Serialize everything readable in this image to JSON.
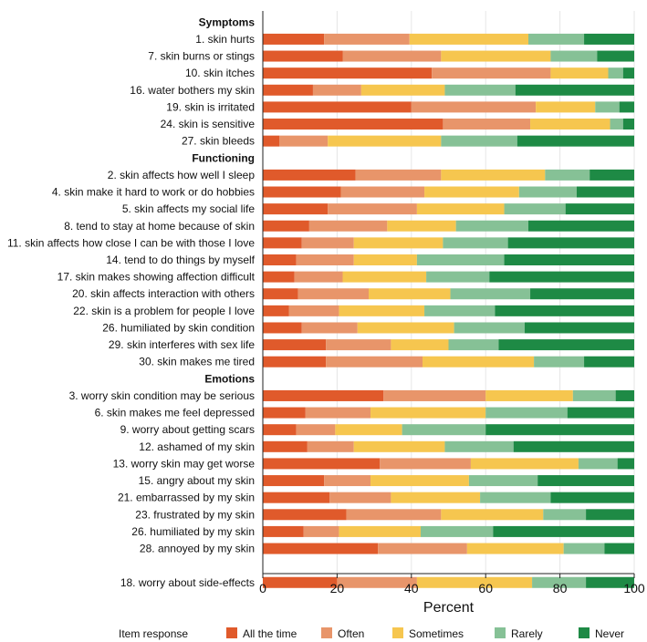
{
  "chart_data": {
    "type": "bar",
    "orientation": "horizontal",
    "stacked": true,
    "xlabel": "Percent",
    "xlim": [
      0,
      100
    ],
    "xticks": [
      "0",
      "20",
      "40",
      "60",
      "80",
      "100"
    ],
    "grid": true,
    "legend_title": "Item response",
    "legend_position": "bottom",
    "series": [
      {
        "name": "All the time",
        "color": "#e05a2b"
      },
      {
        "name": "Often",
        "color": "#e8956a"
      },
      {
        "name": "Sometimes",
        "color": "#f6c64f"
      },
      {
        "name": "Rarely",
        "color": "#86c196"
      },
      {
        "name": "Never",
        "color": "#1e8a45"
      }
    ],
    "rows": [
      {
        "kind": "header",
        "label": "Symptoms"
      },
      {
        "kind": "bar",
        "label": "1. skin hurts",
        "values": [
          16.5,
          23,
          32,
          15,
          13.5
        ]
      },
      {
        "kind": "bar",
        "label": "7. skin burns or stings",
        "values": [
          21.5,
          26.5,
          29.5,
          12.5,
          10
        ]
      },
      {
        "kind": "bar",
        "label": "10. skin itches",
        "values": [
          45.5,
          32,
          15.5,
          4,
          3
        ]
      },
      {
        "kind": "bar",
        "label": "16. water bothers my skin",
        "values": [
          13.5,
          13,
          22.5,
          19,
          32
        ]
      },
      {
        "kind": "bar",
        "label": "19. skin is irritated",
        "values": [
          40,
          33.5,
          16,
          6.5,
          4
        ]
      },
      {
        "kind": "bar",
        "label": "24. skin is sensitive",
        "values": [
          48.5,
          23.5,
          21.5,
          3.5,
          3
        ]
      },
      {
        "kind": "bar",
        "label": "27. skin bleeds",
        "values": [
          4.5,
          13,
          30.5,
          20.5,
          31.5
        ]
      },
      {
        "kind": "header",
        "label": "Functioning"
      },
      {
        "kind": "bar",
        "label": "2. skin affects how well I sleep",
        "values": [
          25,
          23,
          28,
          12,
          12
        ]
      },
      {
        "kind": "bar",
        "label": "4. skin make it hard to work or do hobbies",
        "values": [
          21,
          22.5,
          25.5,
          15.5,
          15.5
        ]
      },
      {
        "kind": "bar",
        "label": "5. skin affects my social life",
        "values": [
          17.5,
          24,
          23.5,
          16.5,
          18.5
        ]
      },
      {
        "kind": "bar",
        "label": "8. tend to stay at home because of skin",
        "values": [
          12.5,
          21,
          18.5,
          19.5,
          28.5
        ]
      },
      {
        "kind": "bar",
        "label": "11. skin affects how close I can be with those I love",
        "values": [
          10.5,
          14,
          24,
          17.5,
          34
        ]
      },
      {
        "kind": "bar",
        "label": "14. tend to do things by myself",
        "values": [
          9,
          15.5,
          17,
          23.5,
          35
        ]
      },
      {
        "kind": "bar",
        "label": "17. skin makes showing affection difficult",
        "values": [
          8.5,
          13,
          22.5,
          17,
          39
        ]
      },
      {
        "kind": "bar",
        "label": "20. skin affects interaction with others",
        "values": [
          9.5,
          19,
          22,
          21.5,
          28
        ]
      },
      {
        "kind": "bar",
        "label": "22. skin is a problem for people I love",
        "values": [
          7,
          13.5,
          23,
          19,
          37.5
        ]
      },
      {
        "kind": "bar",
        "label": "26. humiliated by skin condition",
        "values": [
          10.5,
          15,
          26,
          19,
          29.5
        ]
      },
      {
        "kind": "bar",
        "label": "29. skin interferes with sex life",
        "values": [
          17,
          17.5,
          15.5,
          13.5,
          36.5
        ]
      },
      {
        "kind": "bar",
        "label": "30. skin makes me tired",
        "values": [
          17,
          26,
          30,
          13.5,
          13.5
        ]
      },
      {
        "kind": "header",
        "label": "Emotions"
      },
      {
        "kind": "bar",
        "label": "3. worry skin condition may be serious",
        "values": [
          32.5,
          27.5,
          23.5,
          11.5,
          5
        ]
      },
      {
        "kind": "bar",
        "label": "6. skin makes me feel depressed",
        "values": [
          11.5,
          17.5,
          31,
          22,
          18
        ]
      },
      {
        "kind": "bar",
        "label": "9. worry about getting scars",
        "values": [
          9,
          10.5,
          18,
          22.5,
          40
        ]
      },
      {
        "kind": "bar",
        "label": "12. ashamed of my skin",
        "values": [
          12,
          12.5,
          24.5,
          18.5,
          32.5
        ]
      },
      {
        "kind": "bar",
        "label": "13. worry skin may get worse",
        "values": [
          31.5,
          24.5,
          29,
          10.5,
          4.5
        ]
      },
      {
        "kind": "bar",
        "label": "15. angry about my skin",
        "values": [
          16.5,
          12.5,
          26.5,
          18.5,
          26
        ]
      },
      {
        "kind": "bar",
        "label": "21. embarrassed by my skin",
        "values": [
          18,
          16.5,
          24,
          19,
          22.5
        ]
      },
      {
        "kind": "bar",
        "label": "23. frustrated by my skin",
        "values": [
          22.5,
          25.5,
          27.5,
          11.5,
          13
        ]
      },
      {
        "kind": "bar",
        "label": "26. humiliated by my skin",
        "values": [
          11,
          9.5,
          22,
          19.5,
          38
        ]
      },
      {
        "kind": "bar",
        "label": "28. annoyed by my skin",
        "values": [
          31,
          24,
          26,
          11,
          8
        ]
      },
      {
        "kind": "gap"
      },
      {
        "kind": "bar",
        "label": "18. worry about side-effects",
        "values": [
          20,
          21.5,
          31,
          14.5,
          13
        ]
      }
    ]
  }
}
